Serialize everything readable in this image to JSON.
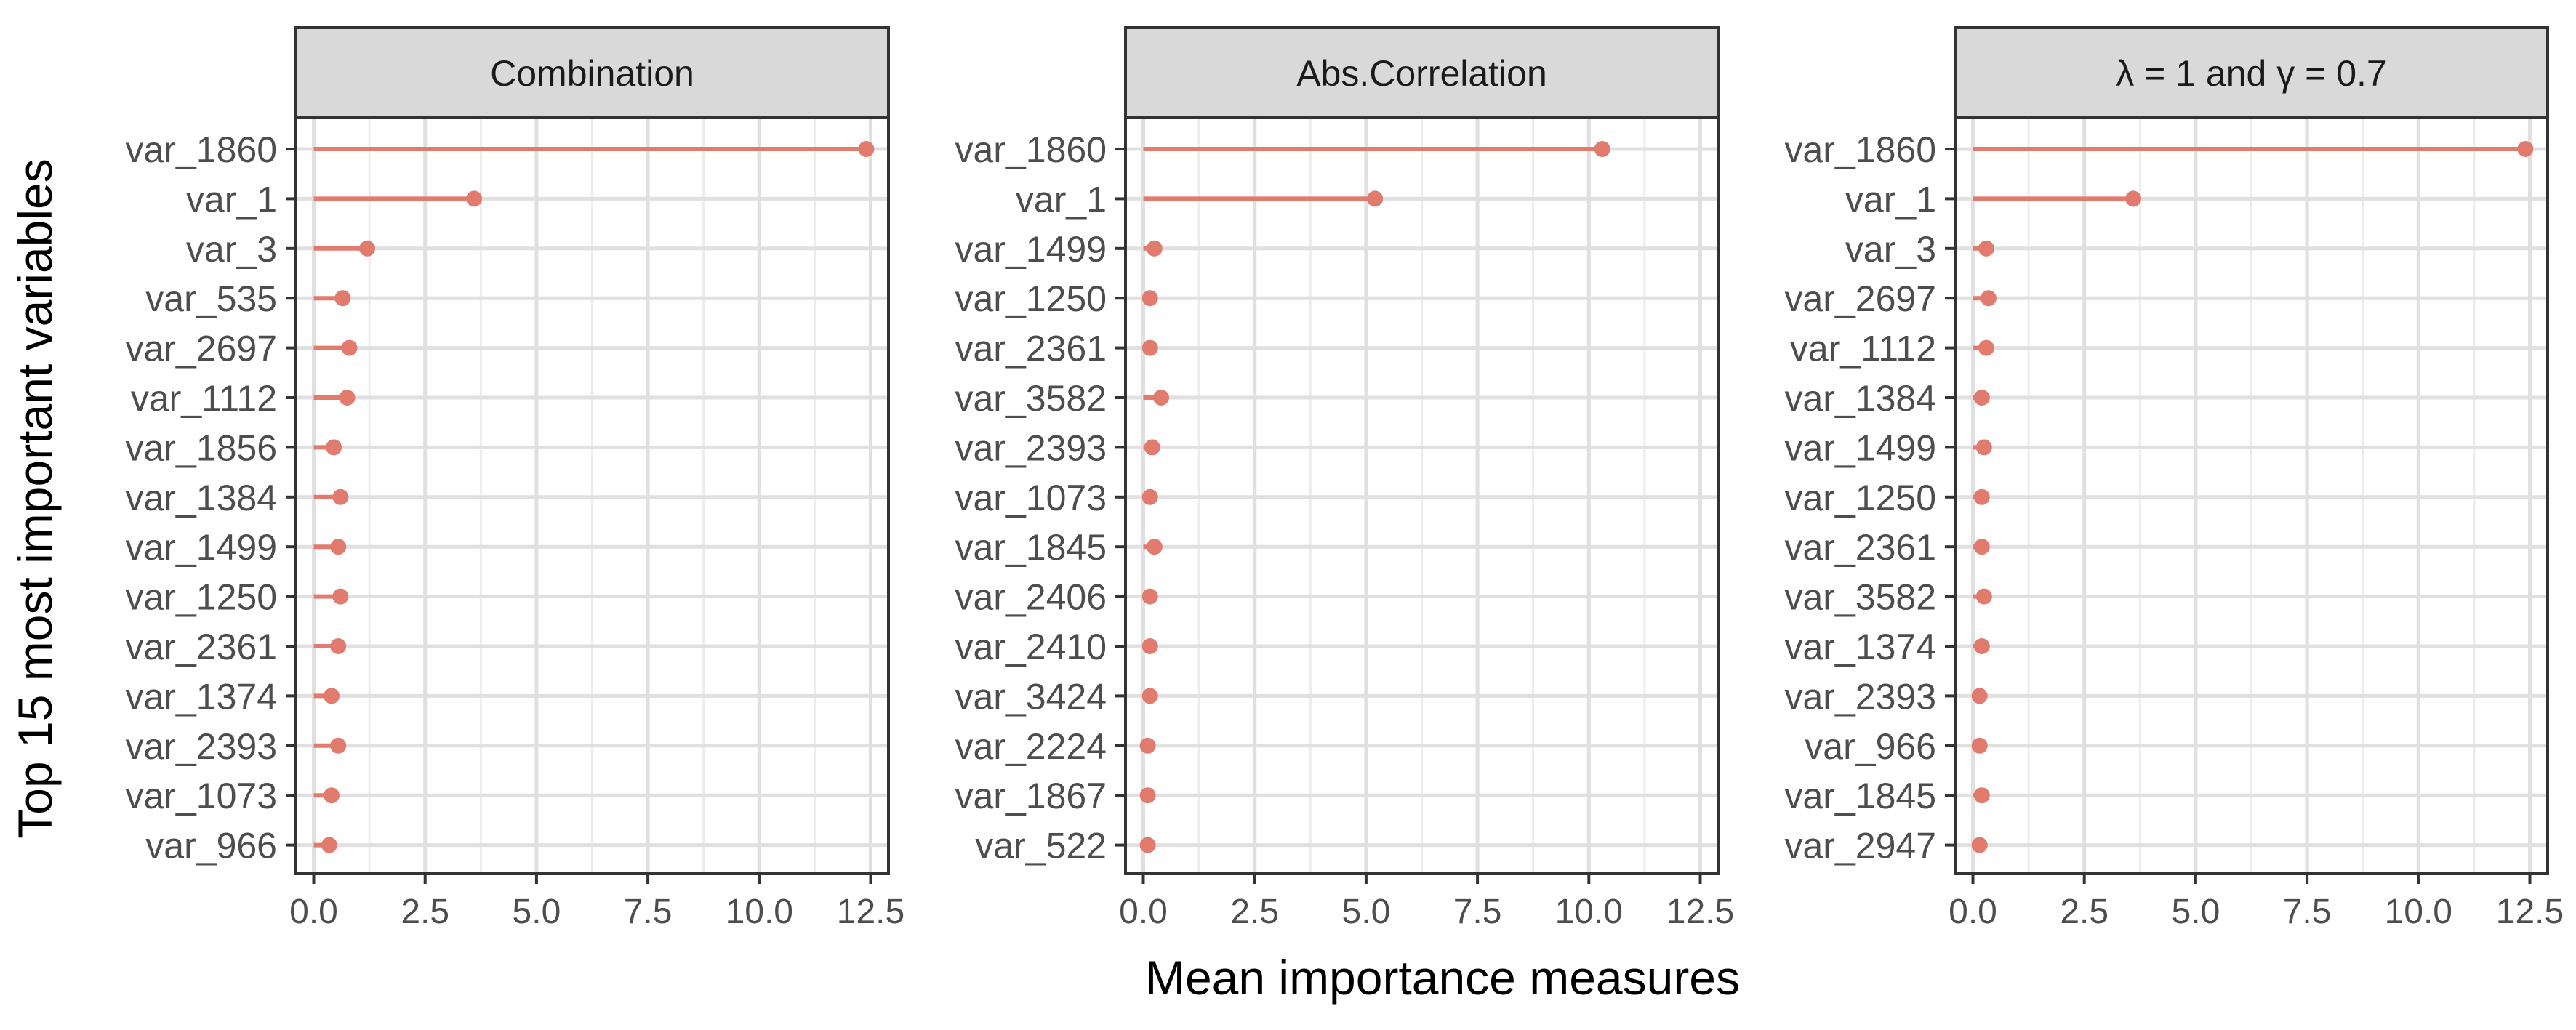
{
  "chart_data": {
    "type": "lollipop",
    "xlabel": "Mean importance measures",
    "ylabel": "Top 15 most important variables",
    "xlim": [
      -0.4,
      12.9
    ],
    "xticks": [
      0.0,
      2.5,
      5.0,
      7.5,
      10.0,
      12.5
    ],
    "xtick_labels": [
      "0.0",
      "2.5",
      "5.0",
      "7.5",
      "10.0",
      "12.5"
    ],
    "grid": true,
    "color": "#E07B6E",
    "facets": [
      {
        "title": "Combination",
        "labels": [
          "var_1860",
          "var_1",
          "var_3",
          "var_535",
          "var_2697",
          "var_1112",
          "var_1856",
          "var_1384",
          "var_1499",
          "var_1250",
          "var_2361",
          "var_1374",
          "var_2393",
          "var_1073",
          "var_966"
        ],
        "values": [
          12.4,
          3.6,
          1.2,
          0.65,
          0.8,
          0.75,
          0.45,
          0.6,
          0.55,
          0.6,
          0.55,
          0.4,
          0.55,
          0.4,
          0.35
        ]
      },
      {
        "title": "Abs.Correlation",
        "labels": [
          "var_1860",
          "var_1",
          "var_1499",
          "var_1250",
          "var_2361",
          "var_3582",
          "var_2393",
          "var_1073",
          "var_1845",
          "var_2406",
          "var_2410",
          "var_3424",
          "var_2224",
          "var_1867",
          "var_522"
        ],
        "values": [
          10.3,
          5.2,
          0.25,
          0.15,
          0.15,
          0.4,
          0.2,
          0.15,
          0.25,
          0.15,
          0.15,
          0.15,
          0.1,
          0.1,
          0.1
        ]
      },
      {
        "title": "λ = 1 and γ = 0.7",
        "labels": [
          "var_1860",
          "var_1",
          "var_3",
          "var_2697",
          "var_1112",
          "var_1384",
          "var_1499",
          "var_1250",
          "var_2361",
          "var_3582",
          "var_1374",
          "var_2393",
          "var_966",
          "var_1845",
          "var_2947"
        ],
        "values": [
          12.4,
          3.6,
          0.3,
          0.35,
          0.3,
          0.2,
          0.25,
          0.2,
          0.2,
          0.25,
          0.2,
          0.15,
          0.15,
          0.2,
          0.15
        ]
      }
    ]
  }
}
